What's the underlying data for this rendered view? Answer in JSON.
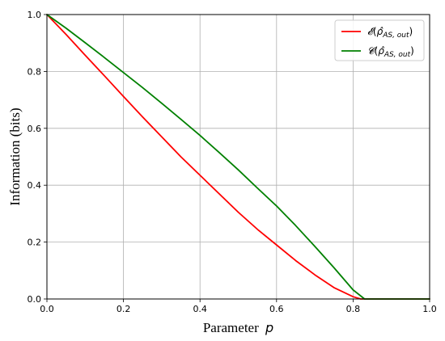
{
  "chart_data": {
    "type": "line",
    "xlabel": "Parameter",
    "xlabel_symbol": "p",
    "ylabel": "Information (bits)",
    "xlim": [
      0.0,
      1.0
    ],
    "ylim": [
      0.0,
      1.0
    ],
    "xticks": [
      "0.0",
      "0.2",
      "0.4",
      "0.6",
      "0.8",
      "1.0"
    ],
    "yticks": [
      "0.0",
      "0.2",
      "0.4",
      "0.6",
      "0.8",
      "1.0"
    ],
    "grid": true,
    "legend_position": "top-right",
    "series": [
      {
        "name": "𝓔(ρ̂AS, out)",
        "legend_func": "𝓔",
        "legend_sub": "AS, out",
        "color": "#ff0000",
        "x": [
          0.0,
          0.05,
          0.1,
          0.15,
          0.2,
          0.25,
          0.3,
          0.35,
          0.4,
          0.45,
          0.5,
          0.55,
          0.6,
          0.65,
          0.7,
          0.75,
          0.8,
          0.82,
          0.83,
          0.9,
          1.0
        ],
        "y": [
          1.0,
          0.93,
          0.857,
          0.785,
          0.712,
          0.64,
          0.57,
          0.5,
          0.435,
          0.37,
          0.305,
          0.245,
          0.19,
          0.135,
          0.085,
          0.04,
          0.008,
          0.0,
          0.0,
          0.0,
          0.0
        ]
      },
      {
        "name": "𝓒(ρ̂AS, out)",
        "legend_func": "𝓒",
        "legend_sub": "AS, out",
        "color": "#008000",
        "x": [
          0.0,
          0.05,
          0.1,
          0.15,
          0.2,
          0.25,
          0.3,
          0.35,
          0.4,
          0.45,
          0.5,
          0.55,
          0.6,
          0.65,
          0.7,
          0.75,
          0.8,
          0.83,
          0.9,
          1.0
        ],
        "y": [
          1.0,
          0.952,
          0.901,
          0.849,
          0.796,
          0.743,
          0.688,
          0.632,
          0.575,
          0.515,
          0.454,
          0.39,
          0.327,
          0.258,
          0.185,
          0.11,
          0.032,
          0.0,
          0.0,
          0.0
        ]
      }
    ]
  }
}
